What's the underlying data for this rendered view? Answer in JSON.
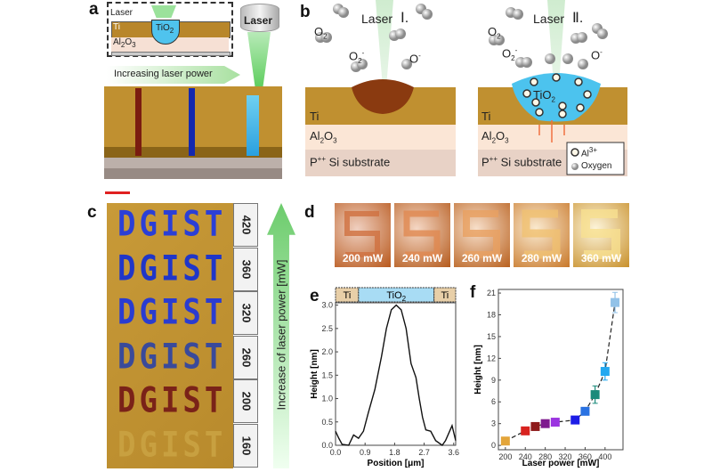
{
  "panels": {
    "a": "a",
    "b": "b",
    "c": "c",
    "d": "d",
    "e": "e",
    "f": "f"
  },
  "panel_a": {
    "inset_laser": "Laser",
    "inset_ti": "Ti",
    "inset_tio2": "TiO",
    "inset_tio2_sub": "2",
    "inset_al": "Al",
    "inset_al_sub1": "2",
    "inset_al_o": "O",
    "inset_al_sub2": "3",
    "laser_head": "Laser",
    "arrow_text": "Increasing laser power",
    "line_colors": [
      "#7a1c10",
      "#1428b0",
      "#38b8e8"
    ]
  },
  "panel_b": {
    "stage1": "Ⅰ.",
    "stage2": "Ⅱ.",
    "laser": "Laser",
    "o2": "O",
    "o2_sub": "2",
    "o2minus": "O",
    "o2minus_sub": "2",
    "o2minus_sup": "-",
    "ominus": "O",
    "ominus_sup": "-",
    "ti": "Ti",
    "al2o3": "Al",
    "al_sub1": "2",
    "al_o": "O",
    "al_sub2": "3",
    "substrate_pre": "P",
    "substrate_sup": "++",
    "substrate": " Si substrate",
    "tio2": "TiO",
    "tio2_sub": "2",
    "legend_al": "Al",
    "legend_al_sup": "3+",
    "legend_oxygen": "Oxygen"
  },
  "panel_c": {
    "word": "DGIST",
    "powers": [
      "420",
      "360",
      "320",
      "260",
      "200",
      "160"
    ],
    "word_colors": [
      "#2b3fd6",
      "#2036c8",
      "#2a3cd0",
      "#3a4a9a",
      "#7a2218",
      "#c8a040"
    ],
    "arrow_text": "Increase of laser power [mW]"
  },
  "panel_d": {
    "labels": [
      "200 mW",
      "240 mW",
      "260 mW",
      "280 mW",
      "360 mW"
    ]
  },
  "chart_data": [
    {
      "panel": "e",
      "type": "line",
      "xlabel": "Position [μm]",
      "ylabel": "Height [nm]",
      "xlim": [
        0,
        3.66
      ],
      "ylim": [
        0,
        3.05
      ],
      "xticks": [
        0.0,
        0.9,
        1.8,
        2.7,
        3.6
      ],
      "yticks": [
        0.0,
        0.5,
        1.0,
        1.5,
        2.0,
        2.5,
        3.0
      ],
      "regions": [
        {
          "label": "Ti",
          "from": 0,
          "to": 0.7
        },
        {
          "label": "TiO",
          "sub": "2",
          "from": 0.7,
          "to": 3.0
        },
        {
          "label": "Ti",
          "from": 3.0,
          "to": 3.66
        }
      ],
      "x": [
        0,
        0.1,
        0.2,
        0.4,
        0.55,
        0.7,
        0.85,
        1.0,
        1.2,
        1.4,
        1.55,
        1.7,
        1.85,
        2.0,
        2.15,
        2.3,
        2.45,
        2.55,
        2.65,
        2.75,
        2.9,
        3.05,
        3.25,
        3.35,
        3.55,
        3.66
      ],
      "y": [
        0.3,
        0.15,
        0.02,
        0.0,
        0.22,
        0.15,
        0.3,
        0.7,
        1.2,
        1.9,
        2.5,
        2.9,
        3.0,
        2.9,
        2.5,
        1.75,
        1.45,
        1.0,
        0.6,
        0.33,
        0.3,
        0.1,
        0.0,
        0.1,
        0.42,
        0.1
      ]
    },
    {
      "panel": "f",
      "type": "scatter",
      "xlabel": "Laser power [mW]",
      "ylabel": "Height [nm]",
      "xlim": [
        186,
        436
      ],
      "ylim": [
        -0.6,
        21.5
      ],
      "xticks": [
        200,
        240,
        280,
        320,
        360,
        400
      ],
      "yticks": [
        0,
        3,
        6,
        9,
        12,
        15,
        18,
        21
      ],
      "trend": "dashed",
      "points": [
        {
          "x": 200,
          "y": 0.6,
          "err": 0,
          "color": "#e3a53a"
        },
        {
          "x": 240,
          "y": 2.0,
          "err": 0,
          "color": "#d8231f"
        },
        {
          "x": 260,
          "y": 2.6,
          "err": 0,
          "color": "#8e1b1b"
        },
        {
          "x": 280,
          "y": 3.0,
          "err": 0,
          "color": "#7e1a8e"
        },
        {
          "x": 300,
          "y": 3.2,
          "err": 0,
          "color": "#9b35e0"
        },
        {
          "x": 340,
          "y": 3.5,
          "err": 0,
          "color": "#1d1de6"
        },
        {
          "x": 360,
          "y": 4.7,
          "err": 0,
          "color": "#2a72e2"
        },
        {
          "x": 380,
          "y": 7.0,
          "err": 1.2,
          "color": "#1a8a7a"
        },
        {
          "x": 400,
          "y": 10.2,
          "err": 1.2,
          "color": "#22a8f0"
        },
        {
          "x": 420,
          "y": 19.7,
          "err": 1.4,
          "color": "#92c2e8"
        }
      ]
    }
  ]
}
